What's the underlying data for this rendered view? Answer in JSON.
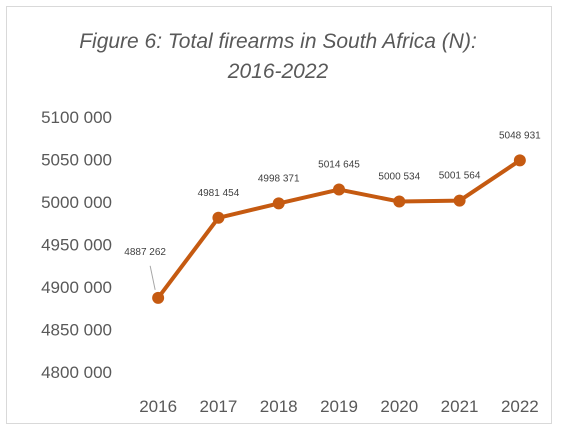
{
  "chart_data": {
    "type": "line",
    "title_line1": "Figure 6: Total firearms in South Africa (N):",
    "title_line2": "2016-2022",
    "categories": [
      "2016",
      "2017",
      "2018",
      "2019",
      "2020",
      "2021",
      "2022"
    ],
    "series": [
      {
        "values": [
          4887262,
          4981454,
          4998371,
          5014645,
          5000534,
          5001564,
          5048931
        ],
        "data_labels": [
          "4887 262",
          "4981 454",
          "4998 371",
          "5014 645",
          "5000 534",
          "5001 564",
          "5048 931"
        ]
      }
    ],
    "y_ticks": [
      4800000,
      4850000,
      4900000,
      4950000,
      5000000,
      5050000,
      5100000
    ],
    "y_tick_labels": [
      "4800 000",
      "4850 000",
      "4900 000",
      "4950 000",
      "5000 000",
      "5050 000",
      "5100 000"
    ],
    "ylim": [
      4800000,
      5100000
    ],
    "grid": false,
    "legend": "none",
    "line_color": "#c55a11"
  }
}
